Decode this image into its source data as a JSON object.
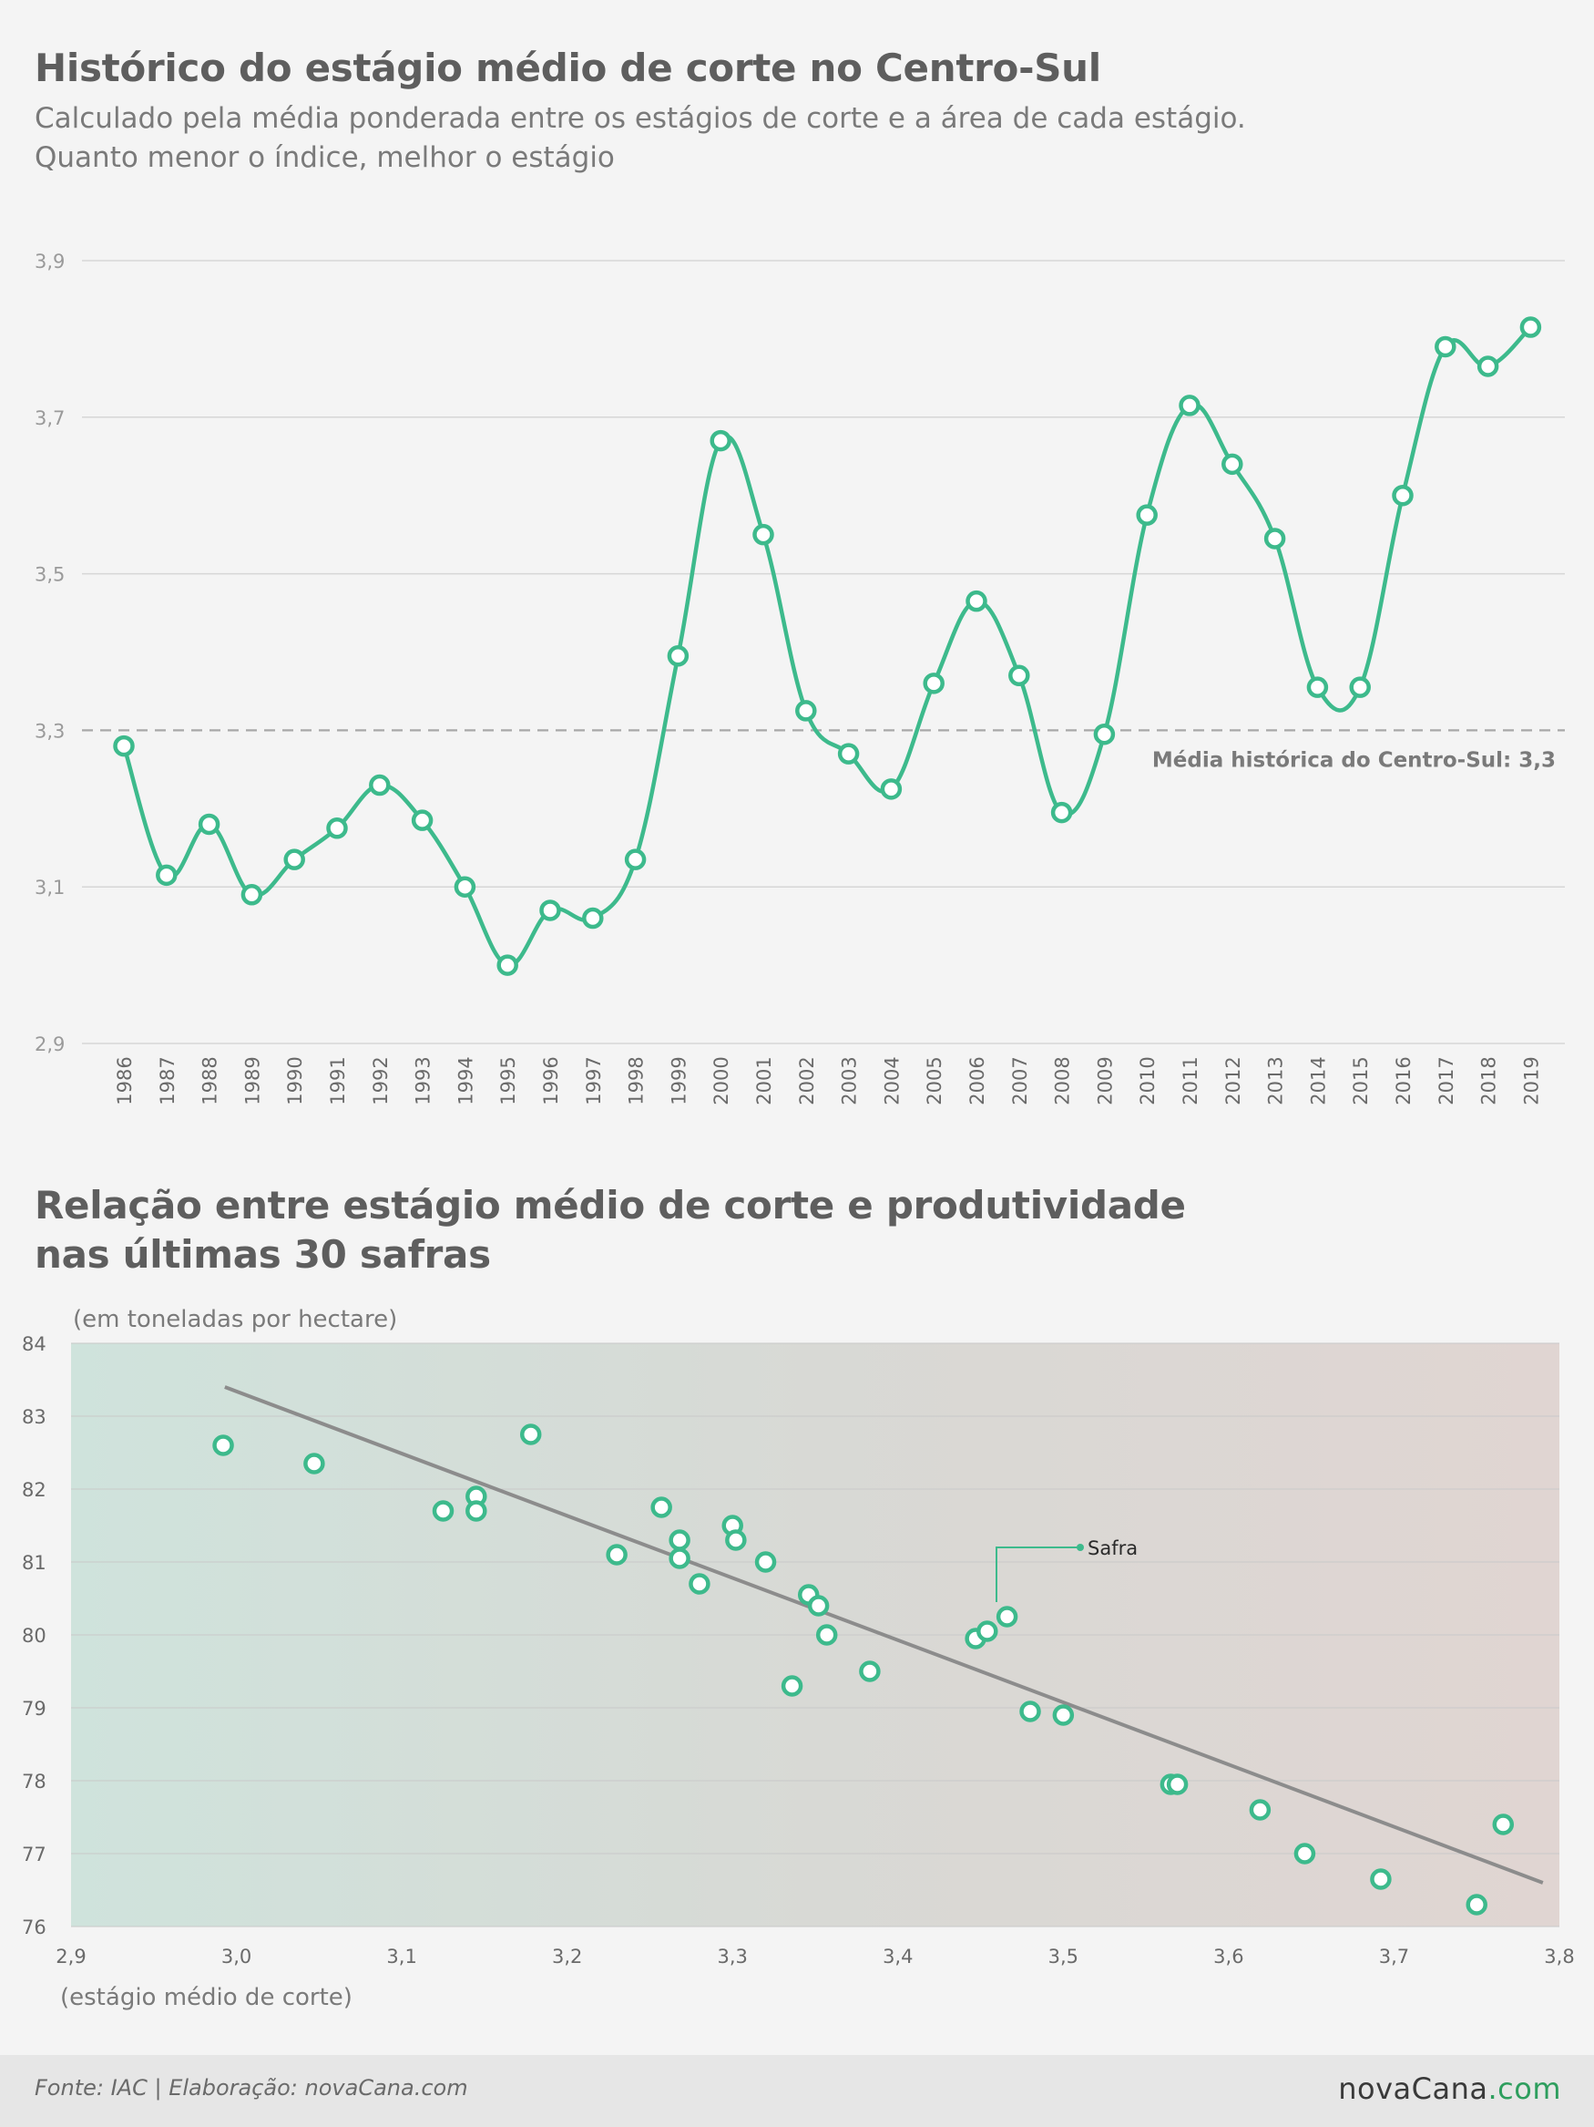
{
  "chart1": {
    "title": "Histórico do estágio médio de corte no Centro-Sul",
    "subtitle_line1": "Calculado pela média ponderada entre os estágios de corte e a área de cada estágio.",
    "subtitle_line2": "Quanto menor o índice, melhor o estágio",
    "average_label": "Média histórica do Centro-Sul: 3,3"
  },
  "chart2": {
    "title_line1": "Relação entre estágio médio de corte e produtividade",
    "title_line2": "nas últimas 30 safras",
    "ylabel": "(em toneladas por hectare)",
    "xlabel": "(estágio médio de corte)",
    "annotation": "Safra"
  },
  "chart_data": [
    {
      "type": "line",
      "categories": [
        "1986",
        "1987",
        "1988",
        "1989",
        "1990",
        "1991",
        "1992",
        "1993",
        "1994",
        "1995",
        "1996",
        "1997",
        "1998",
        "1999",
        "2000",
        "2001",
        "2002",
        "2003",
        "2004",
        "2005",
        "2006",
        "2007",
        "2008",
        "2009",
        "2010",
        "2011",
        "2012",
        "2013",
        "2014",
        "2015",
        "2016",
        "2017",
        "2018",
        "2019"
      ],
      "values": [
        3.28,
        3.115,
        3.18,
        3.09,
        3.135,
        3.175,
        3.23,
        3.185,
        3.1,
        3.0,
        3.07,
        3.06,
        3.135,
        3.395,
        3.67,
        3.55,
        3.325,
        3.27,
        3.225,
        3.36,
        3.465,
        3.37,
        3.195,
        3.295,
        3.575,
        3.715,
        3.64,
        3.545,
        3.355,
        3.355,
        3.6,
        3.79,
        3.765,
        3.815
      ],
      "ylim": [
        2.9,
        3.9
      ],
      "yticks": [
        "2,9",
        "3,1",
        "3,3",
        "3,5",
        "3,7",
        "3,9"
      ],
      "ytick_values": [
        2.9,
        3.1,
        3.3,
        3.5,
        3.7,
        3.9
      ],
      "reference_line": 3.3,
      "grid": true,
      "color": "#3dba8c"
    },
    {
      "type": "scatter",
      "x": [
        2.992,
        3.047,
        3.125,
        3.145,
        3.145,
        3.178,
        3.23,
        3.257,
        3.268,
        3.268,
        3.28,
        3.3,
        3.302,
        3.32,
        3.336,
        3.346,
        3.352,
        3.357,
        3.383,
        3.447,
        3.454,
        3.466,
        3.48,
        3.5,
        3.565,
        3.569,
        3.619,
        3.646,
        3.692,
        3.75,
        3.766
      ],
      "y": [
        82.6,
        82.35,
        81.7,
        81.9,
        81.7,
        82.75,
        81.1,
        81.75,
        81.3,
        81.05,
        80.7,
        81.5,
        81.3,
        81.0,
        79.3,
        80.55,
        80.4,
        80.0,
        79.5,
        79.95,
        80.05,
        80.25,
        78.95,
        78.9,
        77.95,
        77.95,
        77.6,
        77.0,
        76.65,
        76.3,
        77.4
      ],
      "trendline": {
        "x": [
          2.993,
          3.79
        ],
        "y": [
          83.4,
          76.6
        ]
      },
      "xlim": [
        2.9,
        3.8
      ],
      "ylim": [
        76,
        84
      ],
      "xticks": [
        "2,9",
        "3,0",
        "3,1",
        "3,2",
        "3,3",
        "3,4",
        "3,5",
        "3,6",
        "3,7",
        "3,8"
      ],
      "xtick_values": [
        2.9,
        3.0,
        3.1,
        3.2,
        3.3,
        3.4,
        3.5,
        3.6,
        3.7,
        3.8
      ],
      "yticks": [
        "76",
        "77",
        "78",
        "79",
        "80",
        "81",
        "82",
        "83",
        "84"
      ],
      "ytick_values": [
        76,
        77,
        78,
        79,
        80,
        81,
        82,
        83,
        84
      ],
      "grid": true,
      "color": "#3dba8c",
      "trend_color": "#8c8c8c"
    }
  ],
  "footer": {
    "source": "Fonte: IAC | Elaboração: novaCana.com",
    "logo_prefix": "nova",
    "logo_brand": "Cana",
    "logo_suffix": ".com"
  }
}
